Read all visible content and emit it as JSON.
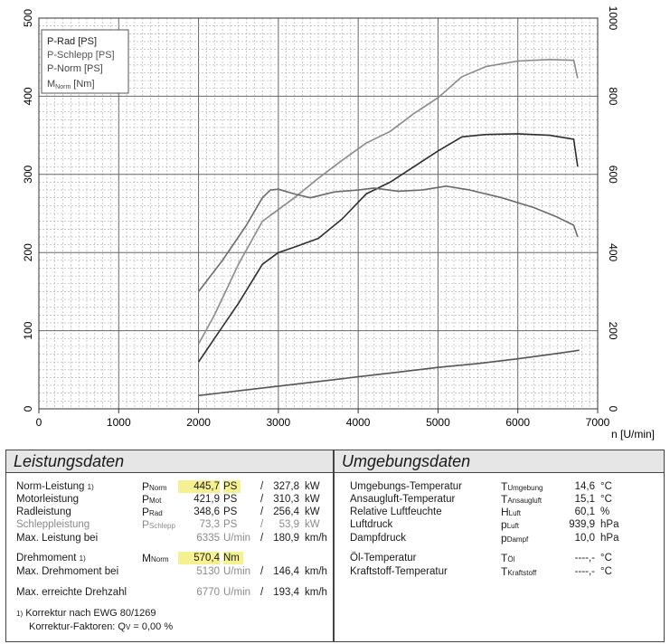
{
  "chart_data": {
    "type": "line",
    "xlabel": "n [U/min]",
    "xlim": [
      0,
      7000
    ],
    "x_ticks": [
      "0",
      "1000",
      "2000",
      "3000",
      "4000",
      "5000",
      "6000",
      "7000"
    ],
    "y_left_lim": [
      0,
      500
    ],
    "y_left_ticks": [
      "0",
      "100",
      "200",
      "300",
      "400",
      "500"
    ],
    "y_right_lim": [
      0,
      1000
    ],
    "y_right_ticks": [
      "0",
      "200",
      "400",
      "600",
      "800",
      "1000"
    ],
    "grid": true,
    "legend_position": "top-left",
    "legend": [
      "P-Rad [PS]",
      "P-Schlepp [PS]",
      "P-Norm [PS]",
      "M",
      "Norm",
      "[Nm]"
    ],
    "series": [
      {
        "name": "P-Norm [PS]",
        "axis": "left",
        "color": "#8a8a8a",
        "x": [
          2000,
          2200,
          2500,
          2800,
          3000,
          3200,
          3500,
          3800,
          4100,
          4400,
          4700,
          5000,
          5300,
          5600,
          6000,
          6400,
          6700,
          6750
        ],
        "y": [
          83,
          120,
          185,
          240,
          255,
          270,
          295,
          318,
          340,
          355,
          378,
          398,
          425,
          438,
          445,
          447,
          446,
          423
        ]
      },
      {
        "name": "P-Rad [PS]",
        "axis": "left",
        "color": "#2e2e2e",
        "x": [
          2000,
          2200,
          2500,
          2800,
          3000,
          3200,
          3500,
          3800,
          4100,
          4400,
          4700,
          5000,
          5300,
          5600,
          6000,
          6400,
          6700,
          6750
        ],
        "y": [
          60,
          90,
          135,
          185,
          200,
          207,
          218,
          243,
          275,
          290,
          310,
          330,
          348,
          351,
          352,
          350,
          345,
          310
        ]
      },
      {
        "name": "P-Schlepp [PS]",
        "axis": "left",
        "color": "#555555",
        "x": [
          2000,
          2500,
          3000,
          3500,
          4000,
          4500,
          5000,
          5500,
          6000,
          6500,
          6770
        ],
        "y": [
          17,
          23,
          29,
          35,
          41,
          47,
          53,
          58,
          64,
          71,
          75
        ]
      },
      {
        "name": "M Norm [Nm]",
        "axis": "right",
        "color": "#6a6a6a",
        "x": [
          2000,
          2300,
          2600,
          2800,
          2900,
          3000,
          3200,
          3400,
          3700,
          4000,
          4200,
          4500,
          4800,
          5100,
          5400,
          5800,
          6200,
          6500,
          6700,
          6750
        ],
        "y": [
          300,
          380,
          470,
          540,
          560,
          562,
          550,
          540,
          555,
          560,
          565,
          557,
          560,
          570,
          560,
          540,
          515,
          490,
          470,
          440
        ]
      }
    ]
  },
  "leistungsdaten": {
    "title": "Leistungsdaten",
    "rows": [
      {
        "label": "Norm-Leistung",
        "sup": "1)",
        "sym": "P",
        "sub": "Norm",
        "v1": "445,7",
        "u1": "PS",
        "sep": "/",
        "v2": "327,8",
        "u2": "kW",
        "highlight": true,
        "gray": false
      },
      {
        "label": "Motorleistung",
        "sup": "",
        "sym": "P",
        "sub": "Mot",
        "v1": "421,9",
        "u1": "PS",
        "sep": "/",
        "v2": "310,3",
        "u2": "kW",
        "highlight": false,
        "gray": false
      },
      {
        "label": "Radleistung",
        "sup": "",
        "sym": "P",
        "sub": "Rad",
        "v1": "348,6",
        "u1": "PS",
        "sep": "/",
        "v2": "256,4",
        "u2": "kW",
        "highlight": false,
        "gray": false
      },
      {
        "label": "Schleppleistung",
        "sup": "",
        "sym": "P",
        "sub": "Schlepp",
        "v1": "73,3",
        "u1": "PS",
        "sep": "/",
        "v2": "53,9",
        "u2": "kW",
        "highlight": false,
        "gray": true
      },
      {
        "label": "Max. Leistung bei",
        "sup": "",
        "sym": "",
        "sub": "",
        "v1": "6335",
        "u1": "U/min",
        "sep": "/",
        "v2": "180,9",
        "u2": "km/h",
        "highlight": false,
        "gray": false,
        "v1gray": true
      },
      {
        "label": "Drehmoment",
        "sup": "1)",
        "sym": "M",
        "sub": "Norm",
        "v1": "570,4",
        "u1": "Nm",
        "sep": "",
        "v2": "",
        "u2": "",
        "highlight": true,
        "gray": false
      },
      {
        "label": "Max. Drehmoment bei",
        "sup": "",
        "sym": "",
        "sub": "",
        "v1": "5130",
        "u1": "U/min",
        "sep": "/",
        "v2": "146,4",
        "u2": "km/h",
        "highlight": false,
        "gray": false,
        "v1gray": true
      },
      {
        "label": "Max. erreichte Drehzahl",
        "sup": "",
        "sym": "",
        "sub": "",
        "v1": "6770",
        "u1": "U/min",
        "sep": "/",
        "v2": "193,4",
        "u2": "km/h",
        "highlight": false,
        "gray": false,
        "v1gray": true
      }
    ],
    "footnote1_sup": "1)",
    "footnote1": "Korrektur nach EWG 80/1269",
    "footnote2": "Korrektur-Faktoren: Q",
    "footnote2_sub": "V",
    "footnote2_value": "=   0,00 %"
  },
  "umgebungsdaten": {
    "title": "Umgebungsdaten",
    "rows": [
      {
        "label": "Umgebungs-Temperatur",
        "sym": "T",
        "sub": "Umgebung",
        "value": "14,6",
        "unit": "°C"
      },
      {
        "label": "Ansaugluft-Temperatur",
        "sym": "T",
        "sub": "Ansaugluft",
        "value": "15,1",
        "unit": "°C"
      },
      {
        "label": "Relative Luftfeuchte",
        "sym": "H",
        "sub": "Luft",
        "value": "60,1",
        "unit": "%"
      },
      {
        "label": "Luftdruck",
        "sym": "p",
        "sub": "Luft",
        "value": "939,9",
        "unit": "hPa"
      },
      {
        "label": "Dampfdruck",
        "sym": "p",
        "sub": "Dampf",
        "value": "10,0",
        "unit": "hPa"
      },
      {
        "label": "Öl-Temperatur",
        "sym": "T",
        "sub": "Öl",
        "value": "----,-",
        "unit": "°C"
      },
      {
        "label": "Kraftstoff-Temperatur",
        "sym": "T",
        "sub": "Kraftstoff",
        "value": "----,-",
        "unit": "°C"
      }
    ]
  }
}
